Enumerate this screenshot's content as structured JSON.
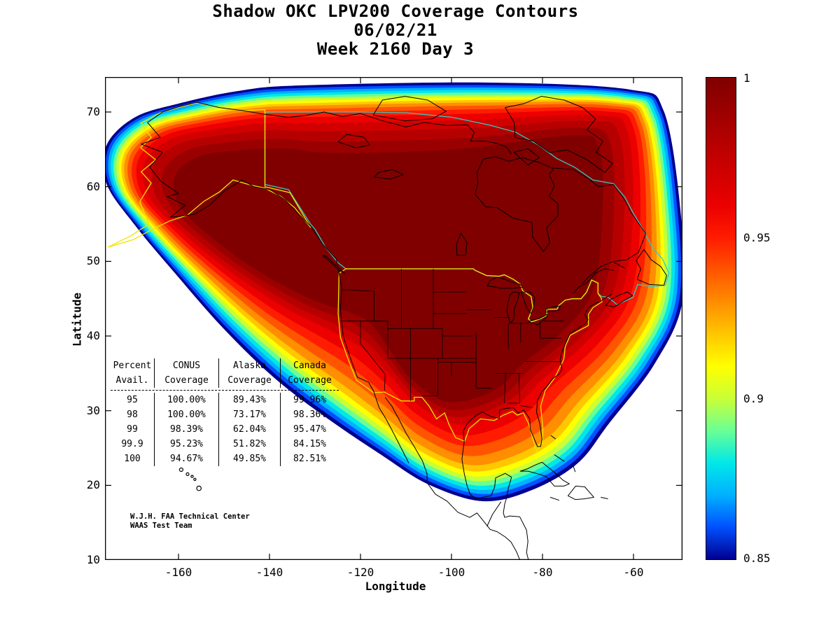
{
  "chart_data": {
    "type": "heatmap",
    "title_lines": [
      "Shadow OKC LPV200 Coverage Contours",
      "06/02/21",
      "Week 2160 Day 3"
    ],
    "xlabel": "Longitude",
    "ylabel": "Latitude",
    "xlim": [
      -176,
      -49
    ],
    "ylim": [
      10,
      74.7
    ],
    "grid": false,
    "x_ticks": [
      "-160",
      "-140",
      "-120",
      "-100",
      "-80",
      "-60"
    ],
    "y_ticks": [
      "70",
      "60",
      "50",
      "40",
      "30",
      "20",
      "10"
    ],
    "colorbar": {
      "min": 0.85,
      "max": 1.0,
      "colormap": "jet",
      "tick_labels": [
        "1",
        "0.95",
        "0.9",
        "0.85"
      ],
      "colors_top_to_bottom": [
        "#800000",
        "#9b0000",
        "#b60000",
        "#d10000",
        "#ec0000",
        "#ff1c00",
        "#ff5500",
        "#ff8e00",
        "#ffc700",
        "#ffff00",
        "#c8ff37",
        "#6aff95",
        "#00e8e8",
        "#00b0ff",
        "#0050ff",
        "#000090"
      ]
    },
    "region_outline_colors": {
      "conus": "#f0e400",
      "alaska": "#f0e400",
      "canada": "#35c8c0"
    },
    "coverage_table": {
      "header_row1": [
        "Percent",
        "CONUS",
        "Alaska",
        "Canada"
      ],
      "header_row2": [
        "Avail.",
        "Coverage",
        "Coverage",
        "Coverage"
      ],
      "rows": [
        [
          "95",
          "100.00%",
          "89.43%",
          "99.96%"
        ],
        [
          "98",
          "100.00%",
          "73.17%",
          "98.36%"
        ],
        [
          "99",
          "98.39%",
          "62.04%",
          "95.47%"
        ],
        [
          "99.9",
          "95.23%",
          "51.82%",
          "84.15%"
        ],
        [
          "100",
          "94.67%",
          "49.85%",
          "82.51%"
        ]
      ]
    },
    "credit": {
      "line1": "W.J.H. FAA Technical Center",
      "line2": "WAAS Test Team"
    }
  }
}
